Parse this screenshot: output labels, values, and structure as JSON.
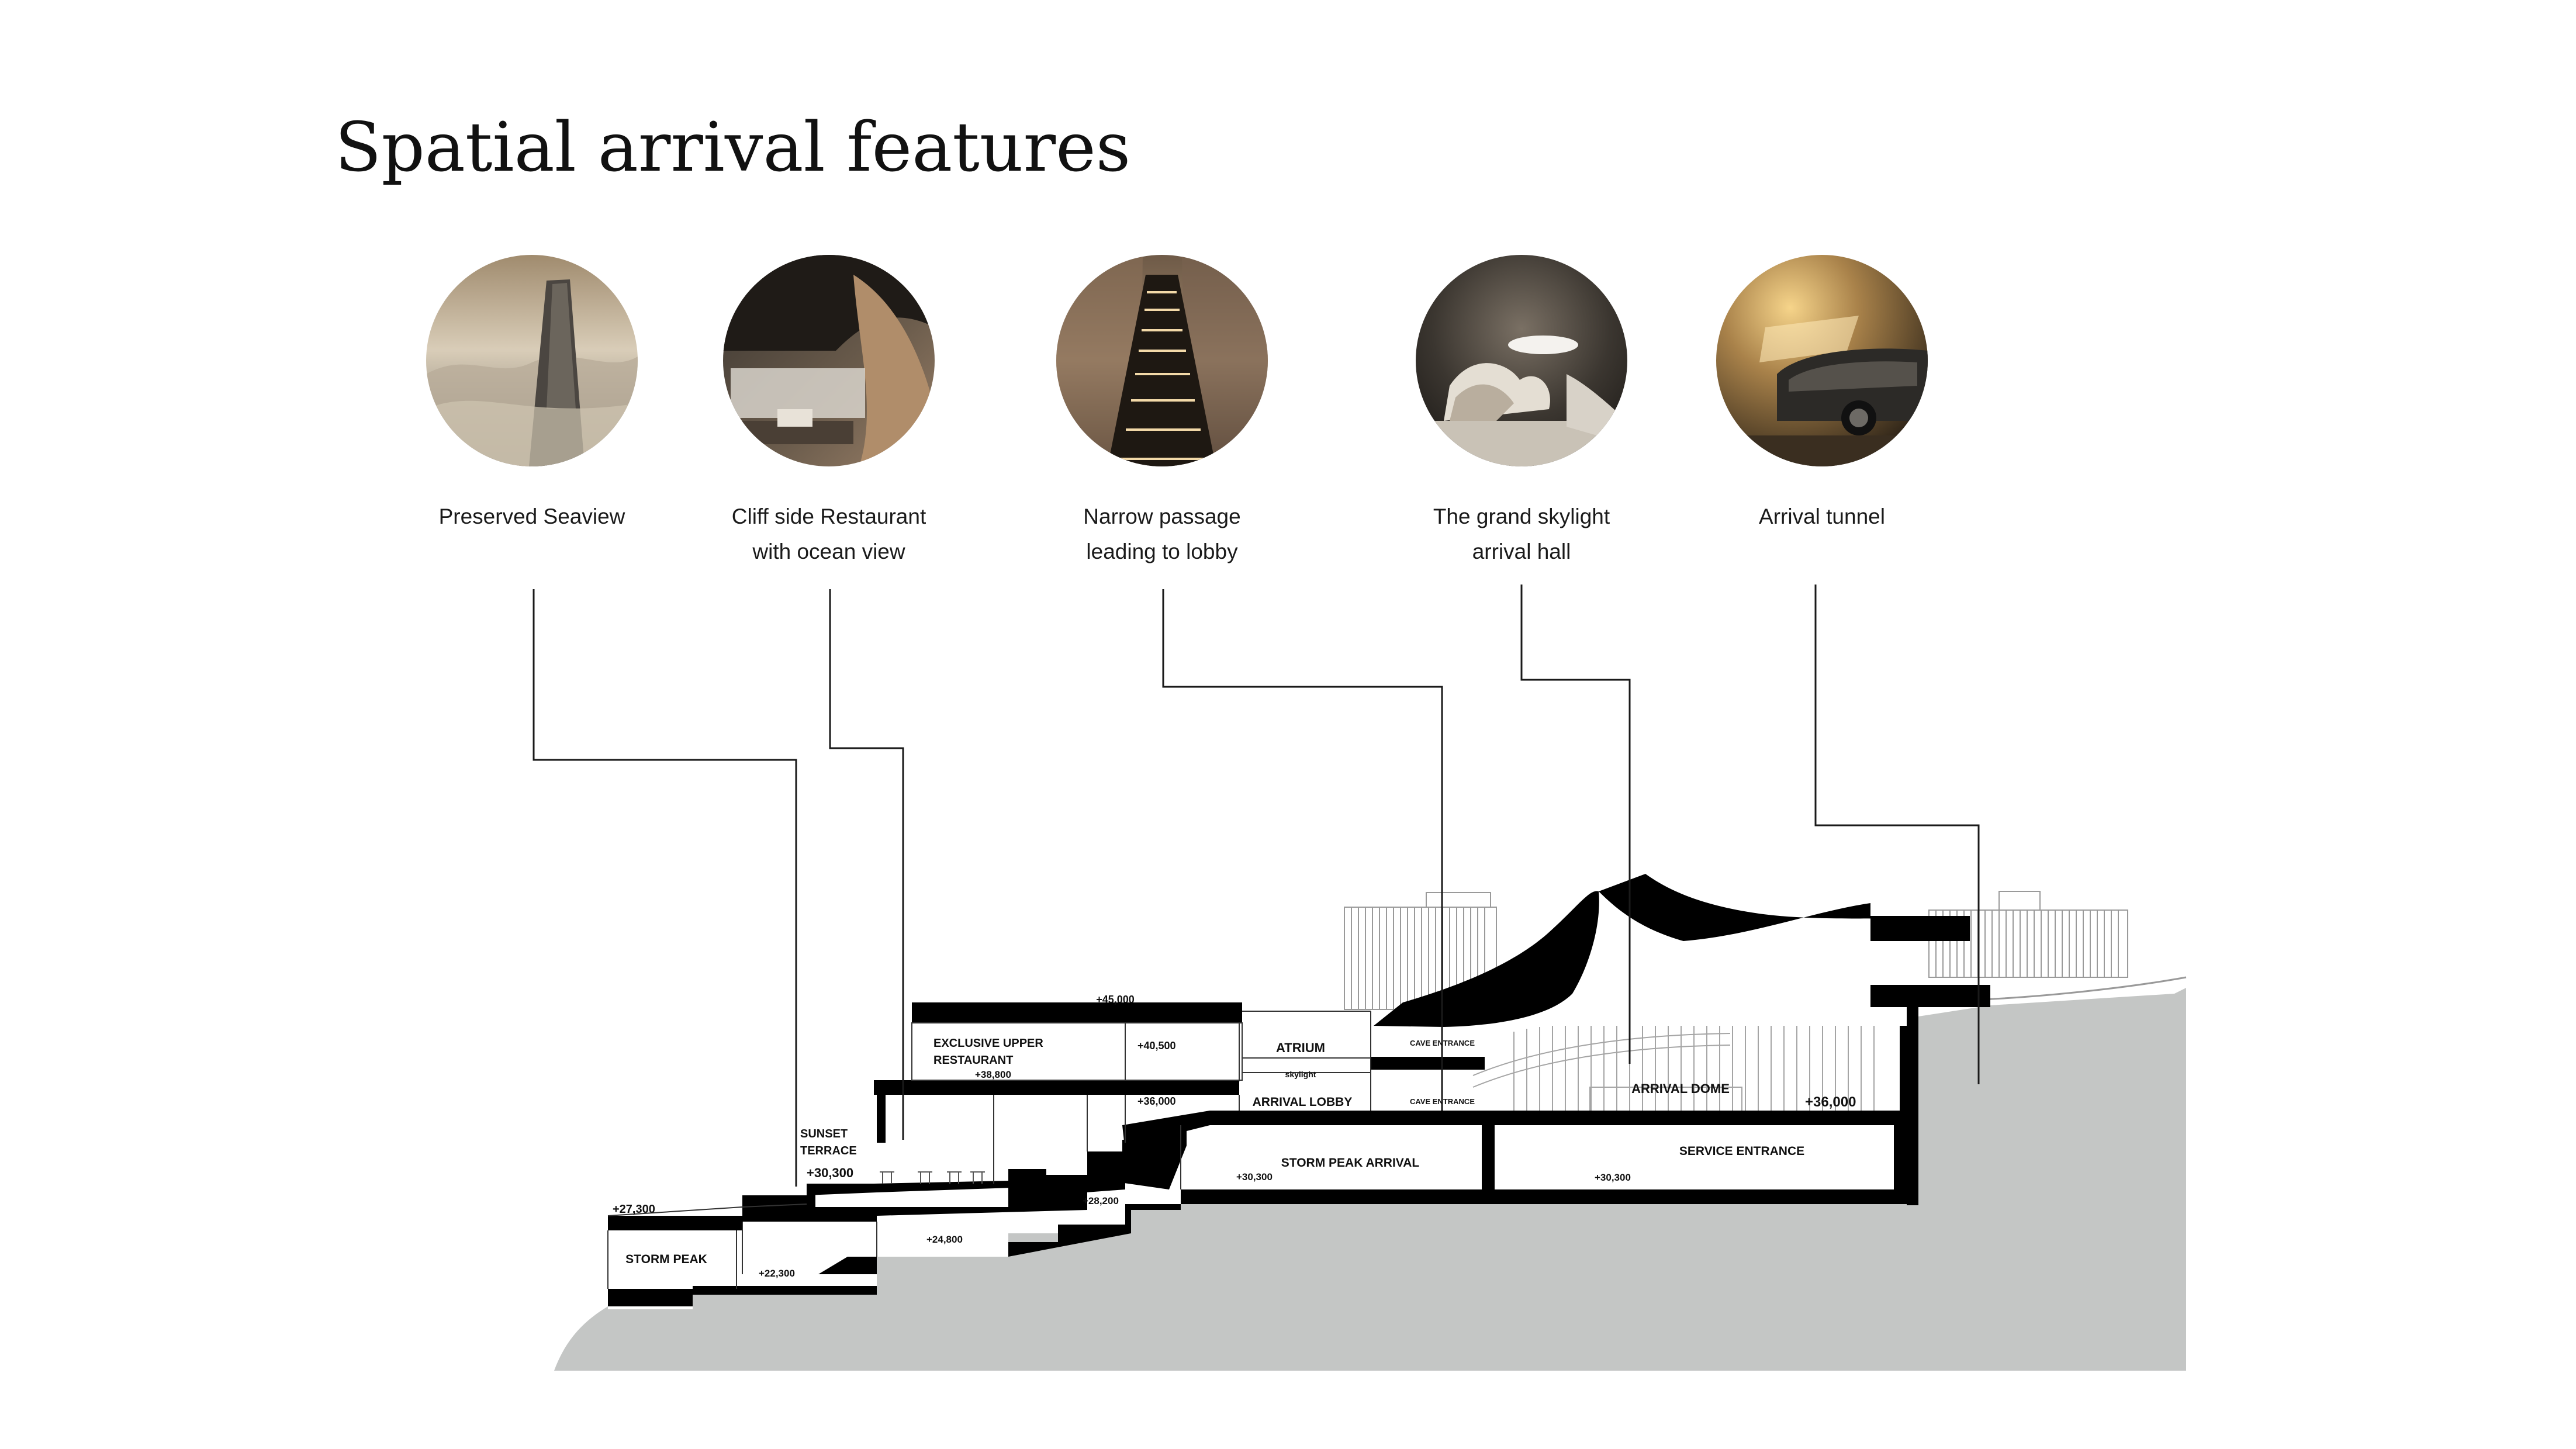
{
  "title": "Spatial arrival features",
  "features": [
    {
      "line1": "Preserved Seaview",
      "line2": "",
      "icon": "foggy-cliff-tower-photo"
    },
    {
      "line1": "Cliff side Restaurant",
      "line2": "with ocean view",
      "icon": "cave-restaurant-photo"
    },
    {
      "line1": "Narrow passage",
      "line2": "leading to lobby",
      "icon": "lit-stairway-photo"
    },
    {
      "line1": "The grand skylight",
      "line2": "arrival hall",
      "icon": "skylight-hall-photo"
    },
    {
      "line1": "Arrival tunnel",
      "line2": "",
      "icon": "car-tunnel-photo"
    }
  ],
  "section": {
    "rooms": {
      "storm_peak": "STORM PEAK",
      "sunset_terrace_1": "SUNSET",
      "sunset_terrace_2": "TERRACE",
      "restaurant_1": "EXCLUSIVE UPPER",
      "restaurant_2": "RESTAURANT",
      "atrium": "ATRIUM",
      "skylight": "skylight",
      "arrival_lobby": "ARRIVAL LOBBY",
      "cave_entrance_upper": "CAVE ENTRANCE",
      "cave_entrance_lower": "CAVE ENTRANCE",
      "arrival_dome": "ARRIVAL DOME",
      "storm_peak_arrival": "STORM PEAK ARRIVAL",
      "service_entrance": "SERVICE ENTRANCE"
    },
    "levels": {
      "l45000": "+45,000",
      "l40500": "+40,500",
      "l38800": "+38,800",
      "l36000_left": "+36,000",
      "l36000_right": "+36,000",
      "l30300_terrace": "+30,300",
      "l30300_arrival": "+30,300",
      "l30300_service": "+30,300",
      "l28200": "+28,200",
      "l27300": "+27,300",
      "l24800": "+24,800",
      "l22300": "+22,300"
    }
  },
  "colors": {
    "ground": "#c4c6c5",
    "structure": "#000000",
    "leader": "#1a1a1a"
  }
}
